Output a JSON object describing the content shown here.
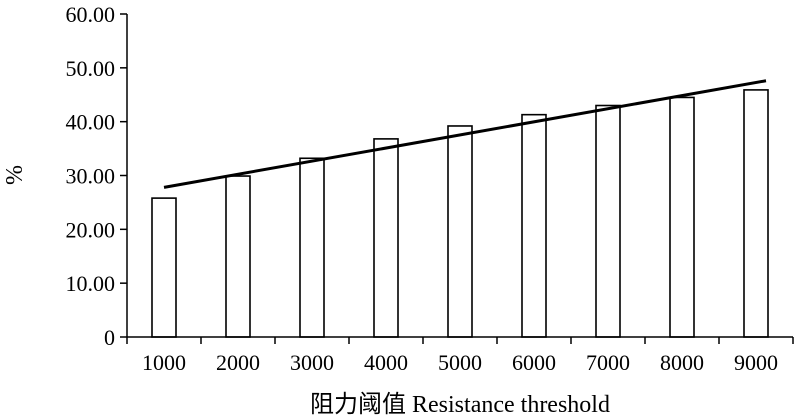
{
  "chart_data": {
    "type": "bar",
    "title": "",
    "xlabel": "阻力阈值 Resistance threshold",
    "ylabel": "%",
    "categories": [
      "1000",
      "2000",
      "3000",
      "4000",
      "5000",
      "6000",
      "7000",
      "8000",
      "9000"
    ],
    "series": [
      {
        "values": [
          25.8,
          29.9,
          33.2,
          36.8,
          39.2,
          41.3,
          43.0,
          44.5,
          45.9
        ]
      }
    ],
    "trendline": {
      "type": "linear",
      "start": 27.8,
      "end": 47.6
    },
    "yticks": [
      "0",
      "10.00",
      "20.00",
      "30.00",
      "40.00",
      "50.00",
      "60.00"
    ],
    "ylim": [
      0,
      60
    ],
    "grid": false,
    "legend": "none",
    "colors": {
      "bar_fill": "#ffffff",
      "bar_stroke": "#000000",
      "trend": "#000000",
      "axis": "#000000"
    }
  }
}
